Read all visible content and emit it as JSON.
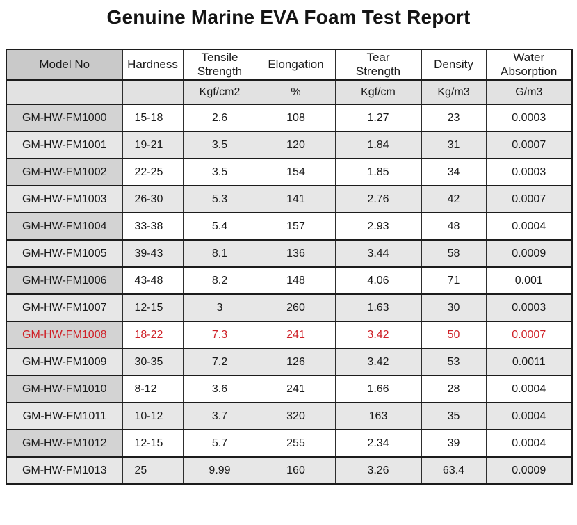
{
  "title": "Genuine Marine EVA Foam Test Report",
  "table": {
    "columns": [
      {
        "label": "Model No",
        "unit": ""
      },
      {
        "label": "Hardness",
        "unit": ""
      },
      {
        "label": "Tensile\nStrength",
        "unit": "Kgf/cm2"
      },
      {
        "label": "Elongation",
        "unit": "%"
      },
      {
        "label": "Tear\nStrength",
        "unit": "Kgf/cm"
      },
      {
        "label": "Density",
        "unit": "Kg/m3"
      },
      {
        "label": "Water\nAbsorption",
        "unit": "G/m3"
      }
    ],
    "rows": [
      {
        "cells": [
          "GM-HW-FM1000",
          "15-18",
          "2.6",
          "108",
          "1.27",
          "23",
          "0.0003"
        ],
        "highlight": false
      },
      {
        "cells": [
          "GM-HW-FM1001",
          "19-21",
          "3.5",
          "120",
          "1.84",
          "31",
          "0.0007"
        ],
        "highlight": false
      },
      {
        "cells": [
          "GM-HW-FM1002",
          "22-25",
          "3.5",
          "154",
          "1.85",
          "34",
          "0.0003"
        ],
        "highlight": false
      },
      {
        "cells": [
          "GM-HW-FM1003",
          "26-30",
          "5.3",
          "141",
          "2.76",
          "42",
          "0.0007"
        ],
        "highlight": false
      },
      {
        "cells": [
          "GM-HW-FM1004",
          "33-38",
          "5.4",
          "157",
          "2.93",
          "48",
          "0.0004"
        ],
        "highlight": false
      },
      {
        "cells": [
          "GM-HW-FM1005",
          "39-43",
          "8.1",
          "136",
          "3.44",
          "58",
          "0.0009"
        ],
        "highlight": false
      },
      {
        "cells": [
          "GM-HW-FM1006",
          "43-48",
          "8.2",
          "148",
          "4.06",
          "71",
          "0.001"
        ],
        "highlight": false
      },
      {
        "cells": [
          "GM-HW-FM1007",
          "12-15",
          "3",
          "260",
          "1.63",
          "30",
          "0.0003"
        ],
        "highlight": false
      },
      {
        "cells": [
          "GM-HW-FM1008",
          "18-22",
          "7.3",
          "241",
          "3.42",
          "50",
          "0.0007"
        ],
        "highlight": true
      },
      {
        "cells": [
          "GM-HW-FM1009",
          "30-35",
          "7.2",
          "126",
          "3.42",
          "53",
          "0.0011"
        ],
        "highlight": false
      },
      {
        "cells": [
          "GM-HW-FM1010",
          "8-12",
          "3.6",
          "241",
          "1.66",
          "28",
          "0.0004"
        ],
        "highlight": false
      },
      {
        "cells": [
          "GM-HW-FM1011",
          "10-12",
          "3.7",
          "320",
          "163",
          "35",
          "0.0004"
        ],
        "highlight": false
      },
      {
        "cells": [
          "GM-HW-FM1012",
          "12-15",
          "5.7",
          "255",
          "2.34",
          "39",
          "0.0004"
        ],
        "highlight": false
      },
      {
        "cells": [
          "GM-HW-FM1013",
          "25",
          "9.99",
          "160",
          "3.26",
          "63.4",
          "0.0009"
        ],
        "highlight": false
      }
    ]
  },
  "colors": {
    "highlight_text": "#cf2027",
    "header_model_bg": "#c9c9c9",
    "model_cell_bg": "#d3d3d3",
    "units_row_bg": "#e2e2e2",
    "alt_row_bg": "#e7e7e7",
    "border": "#1c1c1c"
  }
}
